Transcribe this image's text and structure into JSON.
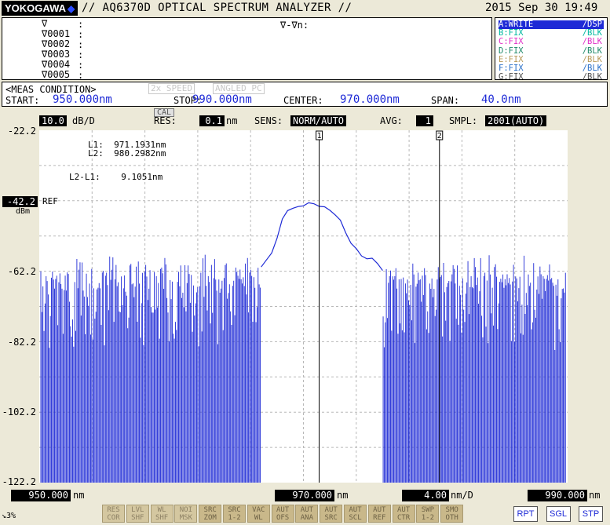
{
  "header": {
    "brand": "YOKOGAWA",
    "title": "// AQ6370D OPTICAL SPECTRUM ANALYZER //",
    "datetime": "2015 Sep 30 19:49"
  },
  "markers": {
    "rows": [
      "∇",
      "∇0001",
      "∇0002",
      "∇0003",
      "∇0004",
      "∇0005"
    ],
    "delta_label": "∇-∇n:"
  },
  "traces": [
    {
      "label": "A:WRITE",
      "mode": "/DSP",
      "color": "#ffffff",
      "bg": "#1e2ad6"
    },
    {
      "label": "B:FIX",
      "mode": "/BLK",
      "color": "#00b8a0",
      "bg": ""
    },
    {
      "label": "C:FIX",
      "mode": "/BLK",
      "color": "#e030c8",
      "bg": ""
    },
    {
      "label": "D:FIX",
      "mode": "/BLK",
      "color": "#208a6a",
      "bg": ""
    },
    {
      "label": "E:FIX",
      "mode": "/BLK",
      "color": "#b89a5a",
      "bg": ""
    },
    {
      "label": "F:FIX",
      "mode": "/BLK",
      "color": "#2a70c8",
      "bg": ""
    },
    {
      "label": "G:FIX",
      "mode": "/BLK",
      "color": "#505050",
      "bg": ""
    }
  ],
  "meas": {
    "heading": "<MEAS CONDITION>",
    "speed": "2x SPEED",
    "angled": "ANGLED PC",
    "start_label": "START:",
    "start_value": "950.000nm",
    "stop_label": "STOP:",
    "stop_value": "990.000nm",
    "center_label": "CENTER:",
    "center_value": "970.000nm",
    "span_label": "SPAN:",
    "span_value": "40.0nm"
  },
  "settings": {
    "scale_value": "10.0",
    "scale_unit": "dB/D",
    "cal": "CAL",
    "res_label": "RES:",
    "res_value": "0.1",
    "res_unit": "nm",
    "sens_label": "SENS:",
    "sens_value": "NORM/AUTO",
    "avg_label": "AVG:",
    "avg_value": "1",
    "smpl_label": "SMPL:",
    "smpl_value": "2001(AUTO)"
  },
  "yaxis": {
    "ticks": [
      "-22.2",
      "-42.2",
      "-62.2",
      "-82.2",
      "-102.2",
      "-122.2"
    ],
    "ref_value": "-42.2",
    "ref_unit": "dBm",
    "ref_label": "REF"
  },
  "xaxis": {
    "start": "950.000",
    "center": "970.000",
    "per_div": "4.00",
    "per_div_unit": "nm/D",
    "stop": "990.000",
    "unit": "nm"
  },
  "marker_readout": {
    "l1": "L1:  971.1931nm",
    "l2": "L2:  980.2982nm",
    "diff": "L2-L1:    9.1051nm",
    "line1_tag": "1",
    "line2_tag": "2"
  },
  "softkeys": [
    [
      "RES",
      "COR"
    ],
    [
      "LVL",
      "SHF"
    ],
    [
      "WL",
      "SHF"
    ],
    [
      "NOI",
      "MSK"
    ],
    [
      "SRC",
      "ZOM"
    ],
    [
      "SRC",
      "1-2"
    ],
    [
      "VAC",
      "WL"
    ],
    [
      "AUT",
      "OFS"
    ],
    [
      "AUT",
      "ANA"
    ],
    [
      "AUT",
      "SRC"
    ],
    [
      "AUT",
      "SCL"
    ],
    [
      "AUT",
      "REF"
    ],
    [
      "AUT",
      "CTR"
    ],
    [
      "SWP",
      "1-2"
    ],
    [
      "SMO",
      "OTH"
    ]
  ],
  "sweep_buttons": [
    "RPT",
    "SGL",
    "STP"
  ],
  "status": "↘3%",
  "colors": {
    "trace": "#1e2ad6",
    "grid": "#b8b8b8"
  },
  "chart_data": {
    "type": "line",
    "xlim": [
      950.0,
      990.0
    ],
    "ylim": [
      -122.2,
      -22.2
    ],
    "y_per_div": 10.0,
    "x_per_div": 4.0,
    "noise_floor": -122.2,
    "noise_peaks_approx": -63,
    "spectrum": {
      "x": [
        966.8,
        967.2,
        967.6,
        968.0,
        968.4,
        968.8,
        969.2,
        969.6,
        970.0,
        970.4,
        970.8,
        971.2,
        971.6,
        972.0,
        972.4,
        972.8,
        973.2,
        973.6,
        974.0,
        974.4,
        974.8,
        975.2,
        975.6,
        976.0
      ],
      "y": [
        -61,
        -59,
        -57,
        -53,
        -47,
        -45,
        -44.6,
        -43.6,
        -43.3,
        -43.0,
        -43.2,
        -43.5,
        -44.3,
        -45.2,
        -45.8,
        -48.0,
        -51,
        -54.0,
        -56.0,
        -57.5,
        -58.3,
        -58.5,
        -60,
        -62
      ]
    },
    "markers": [
      {
        "name": "L1",
        "x": 971.1931
      },
      {
        "name": "L2",
        "x": 980.2982
      }
    ],
    "delta": 9.1051
  }
}
